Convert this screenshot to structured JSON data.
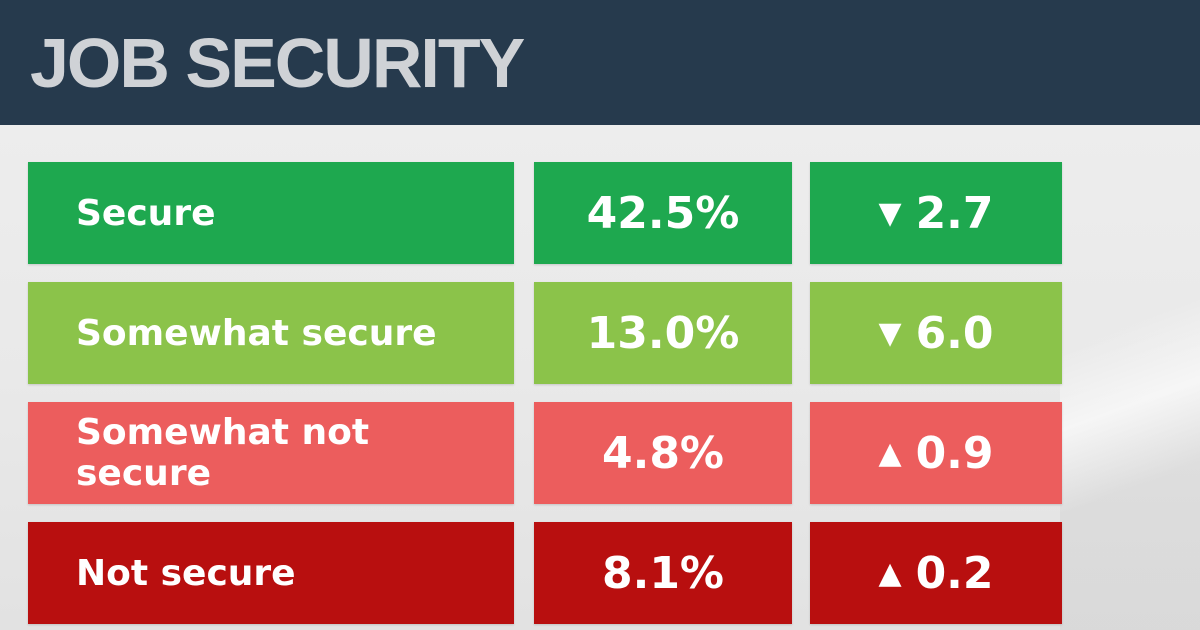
{
  "header": {
    "title": "JOB SECURITY"
  },
  "colors": {
    "header_bg": "#263a4d",
    "title": "#cfd2d6",
    "secure": "#1ea84f",
    "somewhat_secure": "#8bc34a",
    "somewhat_not_secure": "#ec5d5d",
    "not_secure": "#b80f0f"
  },
  "chart_data": {
    "type": "table",
    "title": "JOB SECURITY",
    "columns": [
      "",
      "",
      ""
    ],
    "rows": [
      {
        "label": "Secure",
        "value": "42.5%",
        "change": "2.7",
        "direction": "down",
        "arrow": "▼",
        "color": "#1ea84f"
      },
      {
        "label": "Somewhat secure",
        "value": "13.0%",
        "change": "6.0",
        "direction": "down",
        "arrow": "▼",
        "color": "#8bc34a"
      },
      {
        "label": "Somewhat not secure",
        "value": "4.8%",
        "change": "0.9",
        "direction": "up",
        "arrow": "▲",
        "color": "#ec5d5d"
      },
      {
        "label": "Not secure",
        "value": "8.1%",
        "change": "0.2",
        "direction": "up",
        "arrow": "▲",
        "color": "#b80f0f"
      }
    ]
  }
}
